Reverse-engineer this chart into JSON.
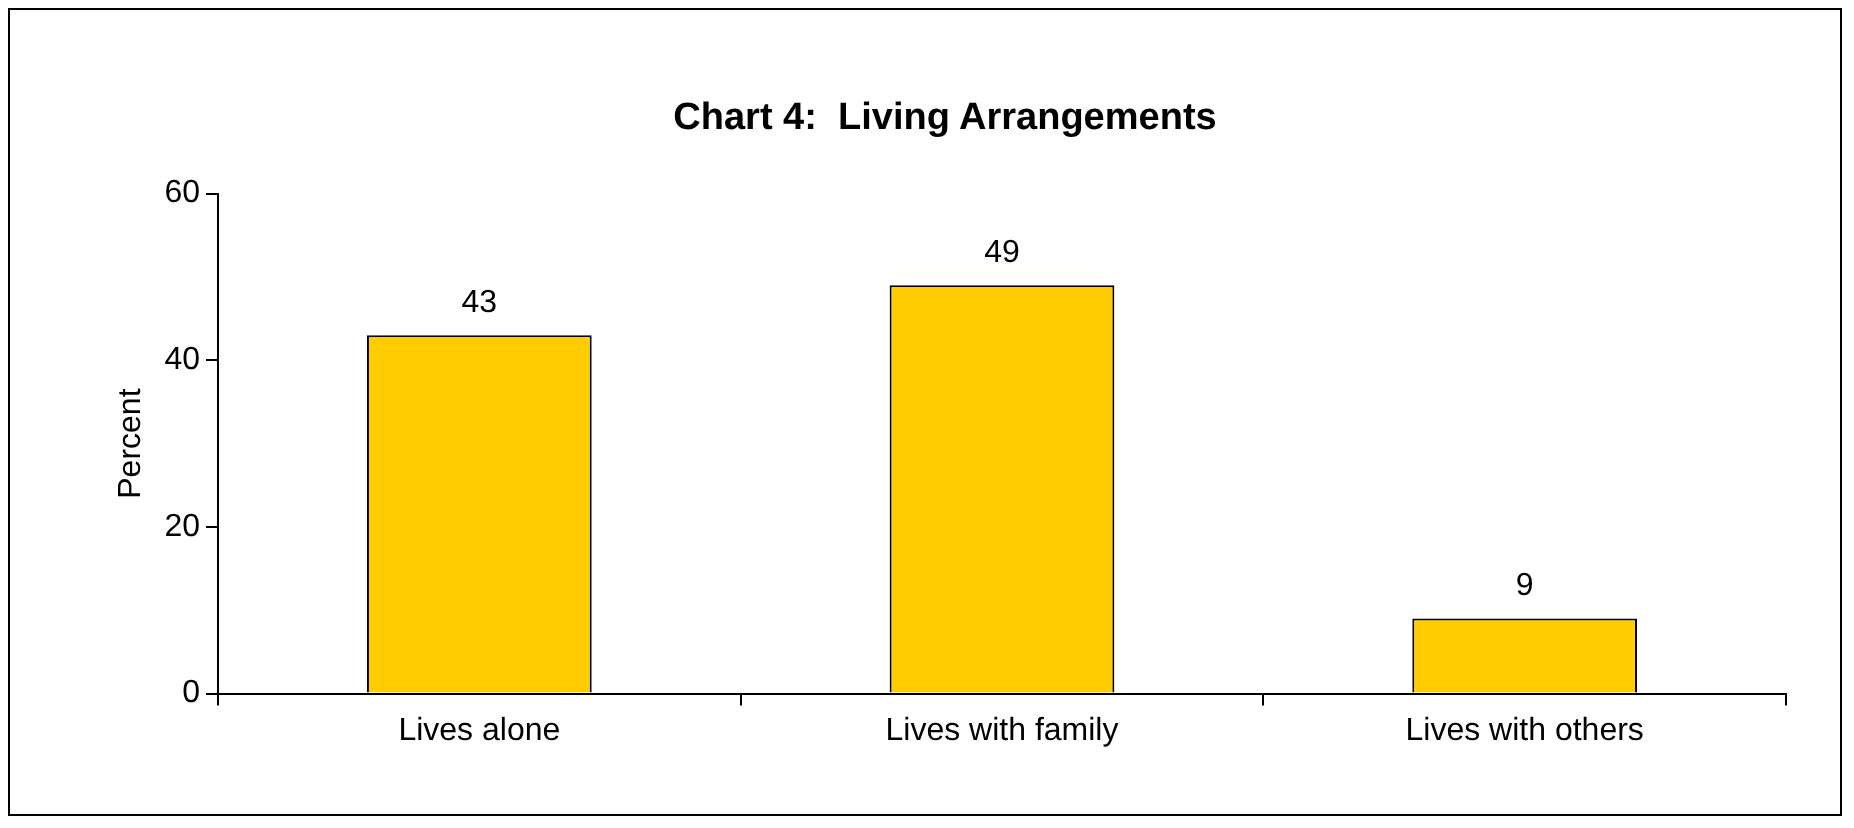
{
  "chart_data": {
    "type": "bar",
    "title": "Chart 4:  Living Arrangements",
    "ylabel": "Percent",
    "categories": [
      "Lives alone",
      "Lives with family",
      "Lives with others"
    ],
    "values": [
      43,
      49,
      9
    ],
    "color": "#ffcc00",
    "ylim": [
      0,
      60
    ],
    "yticks": [
      0,
      20,
      40,
      60
    ],
    "grid": false,
    "data_labels": true
  }
}
